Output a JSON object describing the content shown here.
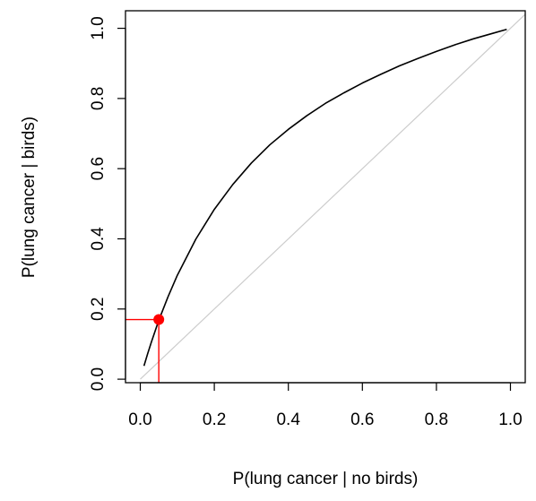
{
  "chart_data": {
    "type": "line",
    "title": "",
    "xlabel": "P(lung cancer | no birds)",
    "ylabel": "P(lung cancer | birds)",
    "xlim": [
      -0.04,
      1.04
    ],
    "ylim": [
      -0.01,
      1.05
    ],
    "x_ticks": [
      0.0,
      0.2,
      0.4,
      0.6,
      0.8,
      1.0
    ],
    "x_tick_labels": [
      "0.0",
      "0.2",
      "0.4",
      "0.6",
      "0.8",
      "1.0"
    ],
    "y_ticks": [
      0.0,
      0.2,
      0.4,
      0.6,
      0.8,
      1.0
    ],
    "y_tick_labels": [
      "0.0",
      "0.2",
      "0.4",
      "0.6",
      "0.8",
      "1.0"
    ],
    "grid": false,
    "legend": "none",
    "series": [
      {
        "kind": "curve",
        "color": "#000000",
        "x": [
          0.01,
          0.02,
          0.03,
          0.05,
          0.075,
          0.1,
          0.15,
          0.2,
          0.25,
          0.3,
          0.35,
          0.4,
          0.45,
          0.5,
          0.55,
          0.6,
          0.65,
          0.7,
          0.75,
          0.8,
          0.85,
          0.9,
          0.95,
          0.99
        ],
        "y": [
          0.038,
          0.073,
          0.106,
          0.168,
          0.235,
          0.296,
          0.399,
          0.484,
          0.555,
          0.616,
          0.668,
          0.712,
          0.751,
          0.786,
          0.816,
          0.844,
          0.869,
          0.893,
          0.914,
          0.934,
          0.953,
          0.97,
          0.985,
          0.997
        ]
      },
      {
        "kind": "reference-line",
        "color": "#cccccc",
        "x": [
          0.0,
          1.04
        ],
        "y": [
          0.0,
          1.04
        ]
      }
    ],
    "highlight_point": {
      "x": 0.05,
      "y": 0.17,
      "color": "#ff0000"
    }
  }
}
